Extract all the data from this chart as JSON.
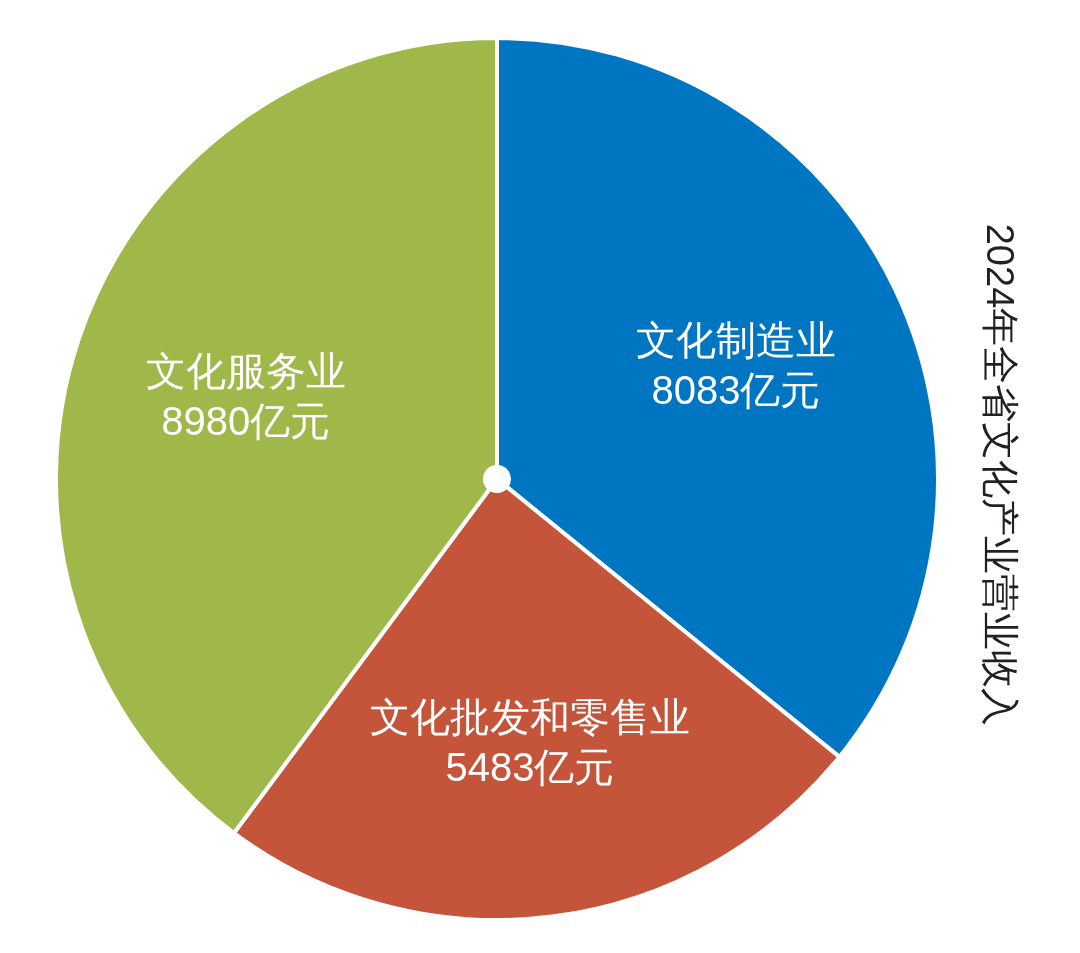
{
  "chart_data": {
    "type": "pie",
    "title": "2024年全省文化产业营业收入",
    "categories": [
      "文化制造业",
      "文化批发和零售业",
      "文化服务业"
    ],
    "values": [
      8083,
      5483,
      8980
    ],
    "colors": [
      "#0075c2",
      "#c4553b",
      "#a0b84a"
    ],
    "value_labels": [
      "8083亿元",
      "5483亿元",
      "8980亿元"
    ]
  }
}
